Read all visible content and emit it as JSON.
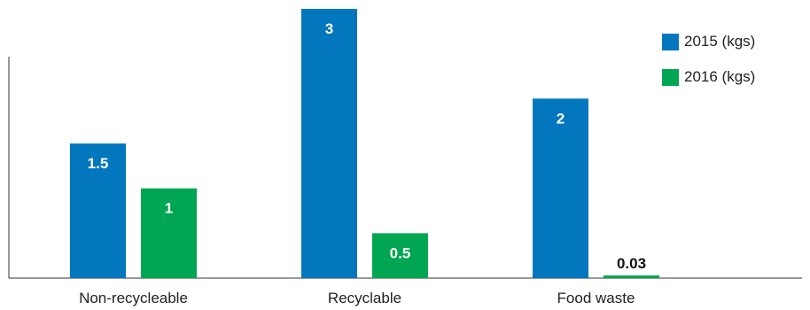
{
  "chart_data": {
    "type": "bar",
    "categories": [
      "Non-recycleable",
      "Recyclable",
      "Food waste"
    ],
    "series": [
      {
        "name": "2015 (kgs)",
        "color": "#0277BD",
        "values": [
          1.5,
          3,
          2
        ],
        "labels": [
          "1.5",
          "3",
          "2"
        ]
      },
      {
        "name": "2016 (kgs)",
        "color": "#00A651",
        "values": [
          1,
          0.5,
          0.03
        ],
        "labels": [
          "1",
          "0.5",
          "0.03"
        ]
      }
    ],
    "ylim": [
      0,
      3
    ],
    "grid": false,
    "legend": "top-right",
    "label_color_inside": "#ffffff",
    "label_color_outside": "#111111",
    "axis_color": "#333333"
  }
}
